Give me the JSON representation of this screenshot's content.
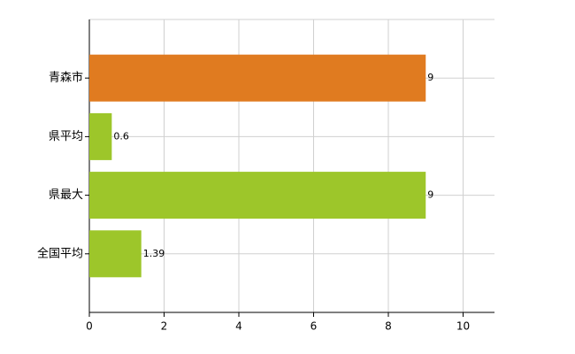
{
  "chart_data": {
    "type": "bar",
    "orientation": "horizontal",
    "categories": [
      "青森市",
      "県平均",
      "県最大",
      "全国平均"
    ],
    "values": [
      9,
      0.6,
      9,
      1.39
    ],
    "colors": [
      "#e07b20",
      "#9dc62a",
      "#9dc62a",
      "#9dc62a"
    ],
    "xlim": [
      0,
      10.84
    ],
    "xticks": [
      0,
      2,
      4,
      6,
      8,
      10
    ],
    "grid": true
  }
}
